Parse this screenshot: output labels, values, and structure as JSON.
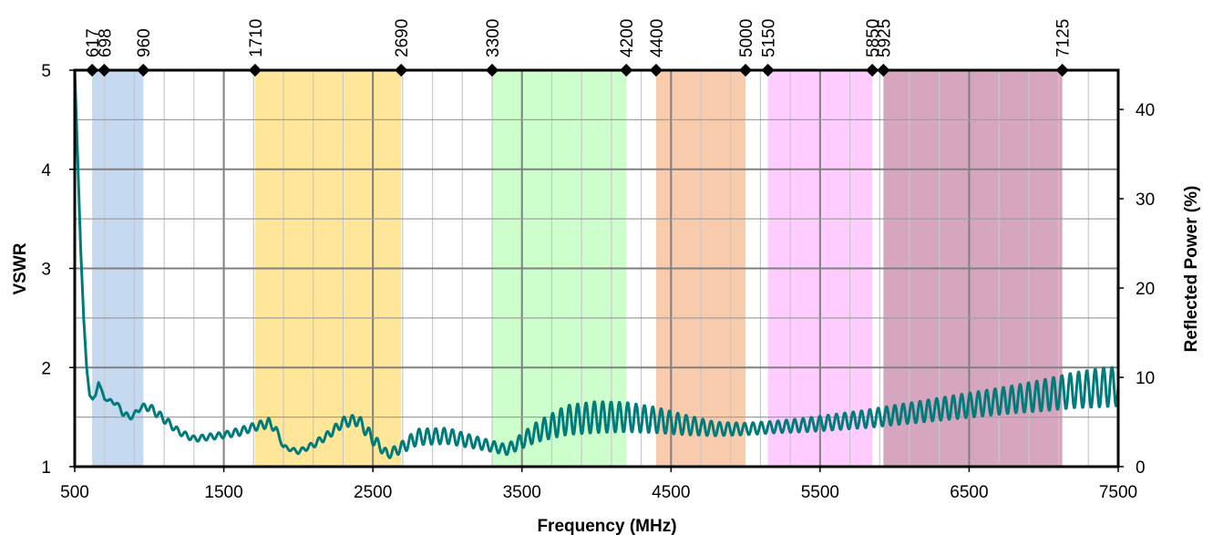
{
  "chart_data": {
    "type": "line",
    "title": "",
    "xlabel": "Frequency (MHz)",
    "ylabel": "VSWR",
    "y2label": "Reflected Power (%)",
    "xlim": [
      500,
      7500
    ],
    "ylim": [
      1,
      5
    ],
    "y2lim": [
      0,
      44.4
    ],
    "x_ticks": [
      "500",
      "1500",
      "2500",
      "3500",
      "4500",
      "5500",
      "6500",
      "7500"
    ],
    "y_ticks": [
      "1",
      "2",
      "3",
      "4",
      "5"
    ],
    "y2_ticks": [
      "0",
      "10",
      "20",
      "30",
      "40"
    ],
    "grid": true,
    "legend": "none",
    "bands": [
      {
        "from": 617,
        "to": 960,
        "color": "#c5d9f1"
      },
      {
        "from": 1710,
        "to": 2690,
        "color": "#ffe699"
      },
      {
        "from": 3300,
        "to": 4200,
        "color": "#ccffcc"
      },
      {
        "from": 4400,
        "to": 5000,
        "color": "#f8cbad"
      },
      {
        "from": 5150,
        "to": 5850,
        "color": "#ffccff"
      },
      {
        "from": 5925,
        "to": 7125,
        "color": "#d5a6bd"
      }
    ],
    "band_markers": [
      {
        "x": 617,
        "label": "617"
      },
      {
        "x": 698,
        "label": "698"
      },
      {
        "x": 960,
        "label": "960"
      },
      {
        "x": 1710,
        "label": "1710"
      },
      {
        "x": 2690,
        "label": "2690"
      },
      {
        "x": 3300,
        "label": "3300"
      },
      {
        "x": 4200,
        "label": "4200"
      },
      {
        "x": 4400,
        "label": "4400"
      },
      {
        "x": 5000,
        "label": "5000"
      },
      {
        "x": 5150,
        "label": "5150"
      },
      {
        "x": 5850,
        "label": "5850"
      },
      {
        "x": 5925,
        "label": "5925"
      },
      {
        "x": 7125,
        "label": "7125"
      }
    ],
    "series": [
      {
        "color": "#007b7b",
        "oscillating": true,
        "x": [
          500,
          520,
          540,
          560,
          580,
          600,
          620,
          640,
          660,
          680,
          700,
          740,
          780,
          820,
          860,
          900,
          940,
          1000,
          1100,
          1200,
          1300,
          1400,
          1500,
          1600,
          1700,
          1800,
          1850,
          1900,
          2000,
          2100,
          2200,
          2300,
          2400,
          2500,
          2600,
          2700,
          2800,
          3000,
          3200,
          3400,
          3600,
          3800,
          4000,
          4200,
          4400,
          4600,
          4800,
          5000,
          5200,
          5400,
          5600,
          5800,
          6000,
          6200,
          6400,
          6600,
          6800,
          7000,
          7200,
          7400,
          7500
        ],
        "y": [
          5.0,
          4.1,
          3.2,
          2.5,
          2.0,
          1.72,
          1.68,
          1.72,
          1.85,
          1.78,
          1.68,
          1.66,
          1.64,
          1.55,
          1.5,
          1.52,
          1.6,
          1.6,
          1.48,
          1.35,
          1.28,
          1.3,
          1.32,
          1.35,
          1.4,
          1.44,
          1.38,
          1.2,
          1.15,
          1.22,
          1.32,
          1.45,
          1.47,
          1.28,
          1.12,
          1.2,
          1.3,
          1.31,
          1.24,
          1.17,
          1.35,
          1.47,
          1.5,
          1.5,
          1.47,
          1.42,
          1.38,
          1.38,
          1.4,
          1.42,
          1.45,
          1.48,
          1.52,
          1.56,
          1.6,
          1.64,
          1.68,
          1.72,
          1.77,
          1.8,
          1.81
        ],
        "amp": [
          0,
          0,
          0,
          0,
          0,
          0,
          0,
          0,
          0,
          0,
          0,
          0.02,
          0.02,
          0.03,
          0.03,
          0.03,
          0.03,
          0.04,
          0.04,
          0.03,
          0.03,
          0.03,
          0.03,
          0.04,
          0.04,
          0.05,
          0.03,
          0.02,
          0.02,
          0.03,
          0.04,
          0.05,
          0.06,
          0.06,
          0.04,
          0.06,
          0.08,
          0.08,
          0.06,
          0.05,
          0.1,
          0.15,
          0.16,
          0.15,
          0.13,
          0.1,
          0.07,
          0.06,
          0.06,
          0.07,
          0.08,
          0.09,
          0.1,
          0.11,
          0.12,
          0.13,
          0.14,
          0.16,
          0.18,
          0.2,
          0.2
        ]
      }
    ]
  }
}
